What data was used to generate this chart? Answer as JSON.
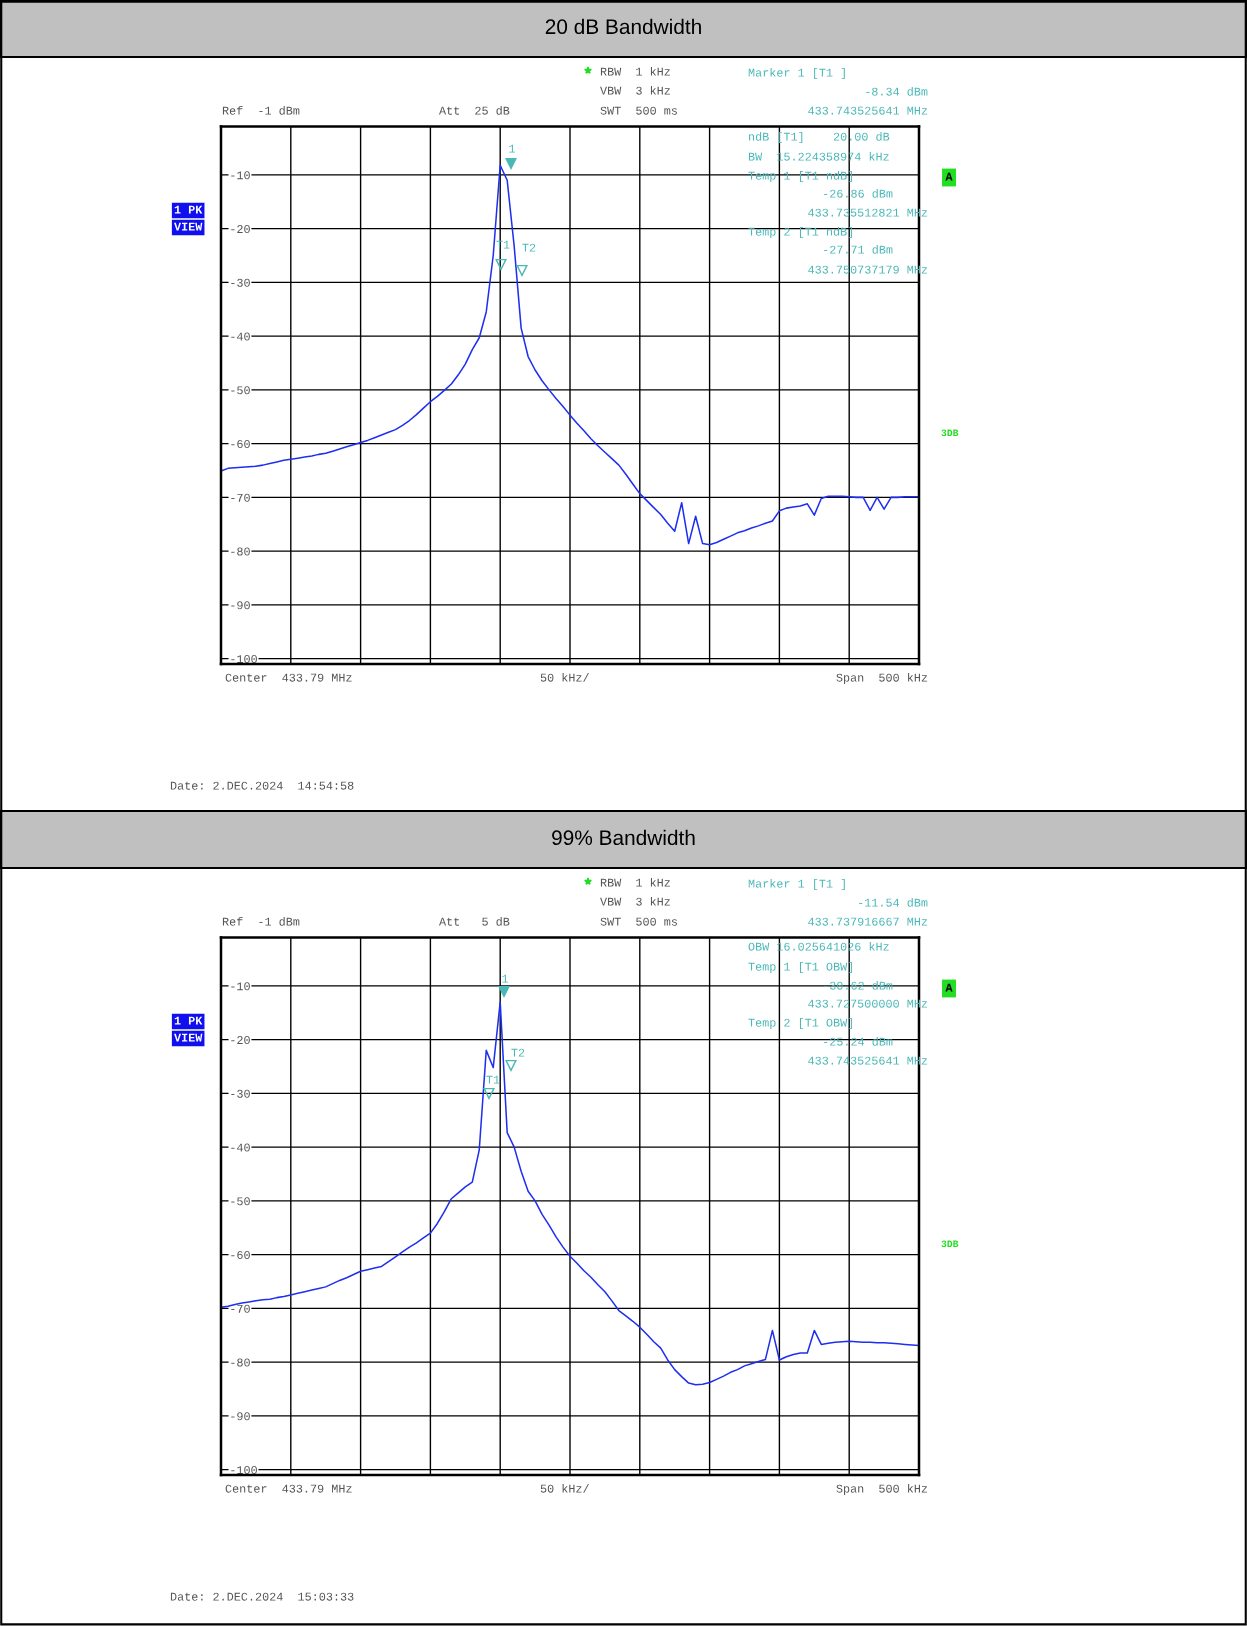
{
  "chart_data": [
    {
      "type": "line",
      "title": "20 dB Bandwidth",
      "ylim": [
        -101,
        -1
      ],
      "categories": [
        null,
        null,
        null,
        null,
        null,
        null,
        null,
        null,
        null,
        null,
        null,
        null,
        null,
        null,
        null,
        null,
        null,
        null,
        null,
        null,
        null,
        null,
        null,
        null,
        null,
        null,
        null,
        null,
        null,
        null,
        null,
        null,
        null,
        null,
        null,
        null,
        null,
        null,
        null,
        null,
        null,
        null,
        null,
        null,
        null,
        null,
        null,
        null,
        null,
        null,
        null,
        null,
        null,
        null,
        null,
        null,
        null,
        null,
        null,
        null,
        null,
        null,
        null,
        null,
        null,
        null,
        null,
        null,
        null,
        null,
        null,
        null,
        null,
        null,
        null,
        null,
        null,
        null,
        null,
        null,
        null,
        null,
        null,
        null,
        null,
        null,
        null,
        null,
        null,
        null,
        null,
        null,
        null,
        null,
        null,
        null,
        null,
        null,
        null,
        null,
        null
      ],
      "yticks": [
        -10,
        -20,
        -30,
        -40,
        -50,
        -60,
        -70,
        -80,
        -90,
        -100
      ],
      "grid": true,
      "legend": false,
      "marker": "none",
      "line_style": "solid",
      "series": [
        {
          "color": "#1f2ff0",
          "values": [
            -65.1,
            -64.6,
            -64.5,
            -64.4,
            -64.3,
            -64.2,
            -64.0,
            -63.7,
            -63.4,
            -63.1,
            -62.9,
            -62.7,
            -62.5,
            -62.3,
            -62.0,
            -61.8,
            -61.4,
            -61.0,
            -60.6,
            -60.2,
            -59.8,
            -59.4,
            -58.9,
            -58.4,
            -57.9,
            -57.4,
            -56.6,
            -55.7,
            -54.6,
            -53.4,
            -52.2,
            -51.2,
            -50.1,
            -48.9,
            -47.2,
            -45.2,
            -42.5,
            -40.3,
            -35.5,
            -25.0,
            -8.2,
            -11.0,
            -23.2,
            -38.5,
            -43.8,
            -46.3,
            -48.3,
            -50.0,
            -51.6,
            -53.1,
            -54.7,
            -56.2,
            -57.6,
            -59.1,
            -60.4,
            -61.6,
            -62.8,
            -64.0,
            -65.7,
            -67.5,
            -69.3,
            -70.6,
            -71.9,
            -73.2,
            -74.8,
            -76.3,
            -71.0,
            -78.6,
            -73.5,
            -78.6,
            -78.8,
            -78.4,
            -77.8,
            -77.2,
            -76.6,
            -76.2,
            -75.7,
            -75.3,
            -74.8,
            -74.4,
            -72.5,
            -72.0,
            -71.8,
            -71.6,
            -71.2,
            -73.3,
            -70.2,
            -69.8,
            -69.8,
            -69.8,
            -69.9,
            -70.0,
            -70.0,
            -72.4,
            -70.0,
            -72.2,
            -70.0,
            -70.0,
            -69.9,
            -69.9,
            -69.9
          ]
        }
      ],
      "annotations": [
        "Ref  -1 dBm",
        "Att  25 dB",
        "RBW  1 kHz",
        "VBW  3 kHz",
        "SWT  500 ms",
        "Marker 1 [T1 ]",
        "-8.34 dBm",
        "433.743525641 MHz",
        "ndB [T1]    20.00 dB",
        "BW  15.224358974 kHz",
        "Temp 1 [T1 ndB]",
        "-26.86 dBm",
        "433.735512821 MHz",
        "Temp 2 [T1 ndB]",
        "-27.71 dBm",
        "433.750737179 MHz",
        "1 PK",
        "VIEW",
        "A",
        "3DB",
        "Center  433.79 MHz",
        "50 kHz/",
        "Span  500 kHz",
        "Date: 2.DEC.2024  14:54:58",
        "1",
        "T1",
        "T2"
      ]
    },
    {
      "type": "line",
      "title": "99% Bandwidth",
      "ylim": [
        -101,
        -1
      ],
      "categories": [
        null,
        null,
        null,
        null,
        null,
        null,
        null,
        null,
        null,
        null,
        null,
        null,
        null,
        null,
        null,
        null,
        null,
        null,
        null,
        null,
        null,
        null,
        null,
        null,
        null,
        null,
        null,
        null,
        null,
        null,
        null,
        null,
        null,
        null,
        null,
        null,
        null,
        null,
        null,
        null,
        null,
        null,
        null,
        null,
        null,
        null,
        null,
        null,
        null,
        null,
        null,
        null,
        null,
        null,
        null,
        null,
        null,
        null,
        null,
        null,
        null,
        null,
        null,
        null,
        null,
        null,
        null,
        null,
        null,
        null,
        null,
        null,
        null,
        null,
        null,
        null,
        null,
        null,
        null,
        null,
        null,
        null,
        null,
        null,
        null,
        null,
        null,
        null,
        null,
        null,
        null,
        null,
        null,
        null,
        null,
        null,
        null,
        null,
        null,
        null,
        null
      ],
      "yticks": [
        -10,
        -20,
        -30,
        -40,
        -50,
        -60,
        -70,
        -80,
        -90,
        -100
      ],
      "grid": true,
      "legend": false,
      "marker": "none",
      "line_style": "solid",
      "series": [
        {
          "color": "#1f2ff0",
          "values": [
            -69.8,
            -69.6,
            -69.3,
            -69.0,
            -68.8,
            -68.6,
            -68.4,
            -68.3,
            -68.0,
            -67.8,
            -67.5,
            -67.2,
            -66.9,
            -66.6,
            -66.3,
            -66.0,
            -65.4,
            -64.8,
            -64.3,
            -63.7,
            -63.1,
            -62.8,
            -62.5,
            -62.2,
            -61.3,
            -60.4,
            -59.5,
            -58.6,
            -57.8,
            -56.9,
            -56.0,
            -54.2,
            -52.0,
            -49.6,
            -48.5,
            -47.4,
            -46.5,
            -40.5,
            -22.0,
            -25.2,
            -13.0,
            -37.3,
            -40.0,
            -44.5,
            -48.2,
            -50.0,
            -52.5,
            -54.5,
            -56.7,
            -58.6,
            -60.3,
            -61.6,
            -63.0,
            -64.2,
            -65.6,
            -66.9,
            -68.6,
            -70.4,
            -71.4,
            -72.4,
            -73.5,
            -74.8,
            -76.2,
            -77.4,
            -79.6,
            -81.4,
            -82.7,
            -83.9,
            -84.2,
            -84.1,
            -83.8,
            -83.2,
            -82.6,
            -81.9,
            -81.4,
            -80.7,
            -80.3,
            -79.9,
            -79.5,
            -74.1,
            -79.6,
            -79.0,
            -78.6,
            -78.3,
            -78.3,
            -74.1,
            -76.7,
            -76.5,
            -76.3,
            -76.2,
            -76.1,
            -76.2,
            -76.3,
            -76.3,
            -76.4,
            -76.4,
            -76.5,
            -76.6,
            -76.7,
            -76.8,
            -76.9
          ]
        }
      ],
      "annotations": [
        "Ref  -1 dBm",
        "Att   5 dB",
        "RBW  1 kHz",
        "VBW  3 kHz",
        "SWT  500 ms",
        "Marker 1 [T1 ]",
        "-11.54 dBm",
        "433.737916667 MHz",
        "OBW 16.025641026 kHz",
        "Temp 1 [T1 OBW]",
        "-30.62 dBm",
        "433.727500000 MHz",
        "Temp 2 [T1 OBW]",
        "-25.24 dBm",
        "433.743525641 MHz",
        "1 PK",
        "VIEW",
        "A",
        "3DB",
        "Center  433.79 MHz",
        "50 kHz/",
        "Span  500 kHz",
        "Date: 2.DEC.2024  15:03:33",
        "1",
        "T1",
        "T2"
      ]
    }
  ]
}
